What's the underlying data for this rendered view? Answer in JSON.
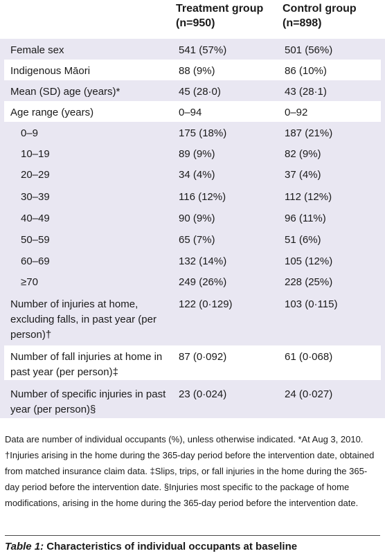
{
  "header": {
    "treatment": [
      "Treatment group",
      "(n=950)"
    ],
    "control": [
      "Control group",
      "(n=898)"
    ]
  },
  "rows": [
    {
      "label": "Female sex",
      "t": "541 (57%)",
      "c": "501 (56%)"
    },
    {
      "label": "Indigenous Māori",
      "t": "88 (9%)",
      "c": "86 (10%)"
    },
    {
      "label": "Mean (SD) age (years)*",
      "t": "45 (28·0)",
      "c": "43 (28·1)"
    },
    {
      "label": "Age range (years)",
      "t": "0–94",
      "c": "0–92"
    },
    {
      "label": "0–9",
      "t": "175 (18%)",
      "c": "187 (21%)"
    },
    {
      "label": "10–19",
      "t": "89 (9%)",
      "c": "82 (9%)"
    },
    {
      "label": "20–29",
      "t": "34 (4%)",
      "c": "37 (4%)"
    },
    {
      "label": "30–39",
      "t": "116 (12%)",
      "c": "112 (12%)"
    },
    {
      "label": "40–49",
      "t": "90 (9%)",
      "c": "96 (11%)"
    },
    {
      "label": "50–59",
      "t": "65 (7%)",
      "c": "51 (6%)"
    },
    {
      "label": "60–69",
      "t": "132 (14%)",
      "c": "105 (12%)"
    },
    {
      "label": "≥70",
      "t": "249 (26%)",
      "c": "228 (25%)"
    },
    {
      "label": "Number of injuries at home, excluding falls, in past year (per person)†",
      "t": "122 (0·129)",
      "c": "103 (0·115)"
    },
    {
      "label": "Number of fall injuries at home in past year (per person)‡",
      "t": "87 (0·092)",
      "c": "61 (0·068)"
    },
    {
      "label": "Number of specific injuries in past year (per person)§",
      "t": "23 (0·024)",
      "c": "24 (0·027)"
    }
  ],
  "notes": [
    "Data are number of individual occupants (%), unless otherwise indicated. *At Aug 3, 2010. †Injuries arising in the home during the 365-day period before the intervention date, obtained from matched insurance claim data. ‡Slips, trips, or fall injuries in the home during the 365-day period before the intervention date. §Injuries most specific to the package of home modifications, arising in the home during the 365-day period before the intervention date."
  ],
  "caption": {
    "label": "Table 1:",
    "text": " Characteristics of individual occupants at baseline"
  }
}
